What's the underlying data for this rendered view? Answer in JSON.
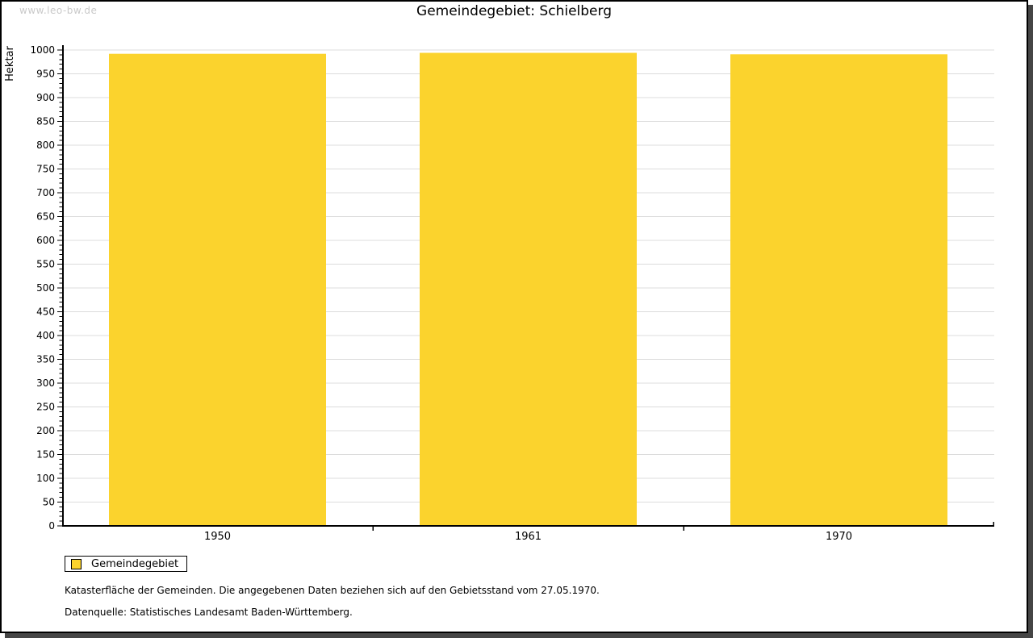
{
  "page": {
    "watermark": "www.leo-bw.de",
    "title": "Gemeindegebiet: Schielberg"
  },
  "chart_data": {
    "type": "bar",
    "title": "Gemeindegebiet: Schielberg",
    "xlabel": "",
    "ylabel": "Hektar",
    "categories": [
      "1950",
      "1961",
      "1970"
    ],
    "series": [
      {
        "name": "Gemeindegebiet",
        "color": "#FBD32D",
        "values": [
          992,
          994,
          991
        ]
      }
    ],
    "ylim": [
      0,
      1000
    ],
    "ytick_major": 50,
    "ytick_minor": 10,
    "grid": "horizontal-major",
    "legend_position": "bottom-left"
  },
  "legend": {
    "items": [
      {
        "label": "Gemeindegebiet",
        "color": "#FBD32D"
      }
    ]
  },
  "notes": {
    "line1": "Katasterfläche der Gemeinden. Die angegebenen Daten beziehen sich auf den Gebietsstand vom 27.05.1970.",
    "line2": "Datenquelle: Statistisches Landesamt Baden-Württemberg."
  },
  "colors": {
    "bar": "#FBD32D",
    "grid": "#DCDCDC",
    "axis": "#000000",
    "frame_border": "#000000",
    "frame_shadow": "#454545",
    "watermark_text": "#C9C9C9"
  }
}
